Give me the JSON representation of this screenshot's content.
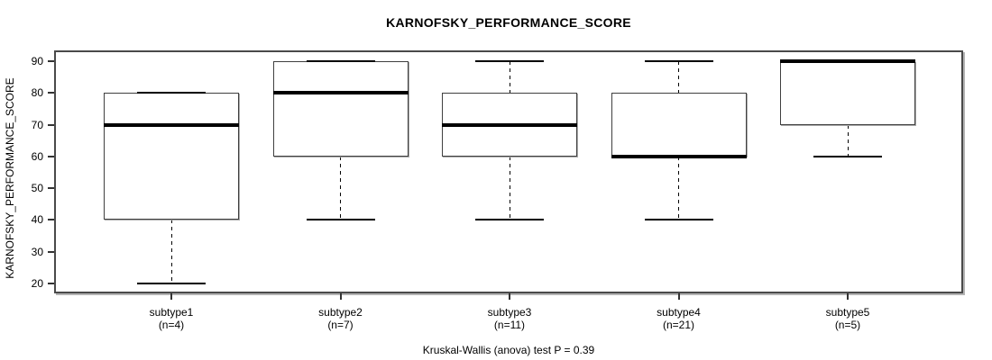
{
  "chart_data": {
    "type": "boxplot",
    "title": "KARNOFSKY_PERFORMANCE_SCORE",
    "ylabel": "KARNOFSKY_PERFORMANCE_SCORE",
    "annotation": "Kruskal-Wallis (anova) test P = 0.39",
    "ylim": [
      20,
      90
    ],
    "yticks": [
      20,
      30,
      40,
      50,
      60,
      70,
      80,
      90
    ],
    "grid": "off",
    "groups": [
      {
        "label": "subtype1",
        "n_label": "(n=4)",
        "n": 4,
        "whisker_low": 20,
        "q1": 40,
        "median": 70,
        "q3": 80,
        "whisker_high": 80
      },
      {
        "label": "subtype2",
        "n_label": "(n=7)",
        "n": 7,
        "whisker_low": 40,
        "q1": 60,
        "median": 80,
        "q3": 90,
        "whisker_high": 90
      },
      {
        "label": "subtype3",
        "n_label": "(n=11)",
        "n": 11,
        "whisker_low": 40,
        "q1": 60,
        "median": 70,
        "q3": 80,
        "whisker_high": 90
      },
      {
        "label": "subtype4",
        "n_label": "(n=21)",
        "n": 21,
        "whisker_low": 40,
        "q1": 60,
        "median": 60,
        "q3": 80,
        "whisker_high": 90
      },
      {
        "label": "subtype5",
        "n_label": "(n=5)",
        "n": 5,
        "whisker_low": 60,
        "q1": 70,
        "median": 90,
        "q3": 90,
        "whisker_high": 90
      }
    ],
    "colors": {
      "line": "#000000",
      "frame": "#4a4a4a",
      "background": "#ffffff"
    }
  }
}
